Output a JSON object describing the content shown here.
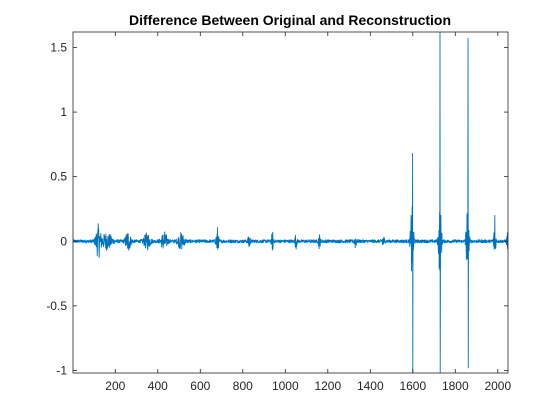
{
  "chart_data": {
    "type": "line",
    "title": "Difference Between Original and Reconstruction",
    "xlabel": "",
    "ylabel": "",
    "xlim": [
      1,
      2048
    ],
    "ylim": [
      -1.02,
      1.62
    ],
    "x_ticks": [
      200,
      400,
      600,
      800,
      1000,
      1200,
      1400,
      1600,
      1800,
      2000
    ],
    "x_tick_labels": [
      "200",
      "400",
      "600",
      "800",
      "1000",
      "1200",
      "1400",
      "1600",
      "1800",
      "2000"
    ],
    "y_ticks": [
      -1,
      -0.5,
      0,
      0.5,
      1,
      1.5
    ],
    "y_tick_labels": [
      "-1",
      "-0.5",
      "0",
      "0.5",
      "1",
      "1.5"
    ],
    "grid": false,
    "series": [
      {
        "color": "#0072BD",
        "baseline_noise": 0.012,
        "bursts": [
          {
            "x": 120,
            "amplitude": 0.12,
            "width": 12
          },
          {
            "x": 160,
            "amplitude": 0.06,
            "width": 25
          },
          {
            "x": 260,
            "amplitude": 0.08,
            "width": 12
          },
          {
            "x": 350,
            "amplitude": 0.06,
            "width": 15
          },
          {
            "x": 430,
            "amplitude": 0.07,
            "width": 14
          },
          {
            "x": 510,
            "amplitude": 0.06,
            "width": 15
          },
          {
            "x": 680,
            "amplitude": 0.11,
            "width": 6
          },
          {
            "x": 830,
            "amplitude": 0.06,
            "width": 5
          },
          {
            "x": 940,
            "amplitude": 0.07,
            "width": 5
          },
          {
            "x": 1050,
            "amplitude": 0.05,
            "width": 5
          },
          {
            "x": 1160,
            "amplitude": 0.05,
            "width": 5
          },
          {
            "x": 1330,
            "amplitude": 0.05,
            "width": 5
          },
          {
            "x": 1460,
            "amplitude": 0.05,
            "width": 6
          },
          {
            "x": 1597,
            "amplitude": 0.35,
            "width": 7
          },
          {
            "x": 1728,
            "amplitude": 0.3,
            "width": 7
          },
          {
            "x": 1857,
            "amplitude": 0.28,
            "width": 7
          },
          {
            "x": 1985,
            "amplitude": 0.1,
            "width": 6
          },
          {
            "x": 2045,
            "amplitude": 0.06,
            "width": 4
          }
        ],
        "spikes": [
          {
            "x": 1599,
            "high": 0.68,
            "low": -1.02
          },
          {
            "x": 1728,
            "high": 1.62,
            "low": -1.02
          },
          {
            "x": 1860,
            "high": 1.57,
            "low": -0.98
          },
          {
            "x": 1986,
            "high": 0.2,
            "low": -0.05
          }
        ]
      }
    ]
  }
}
